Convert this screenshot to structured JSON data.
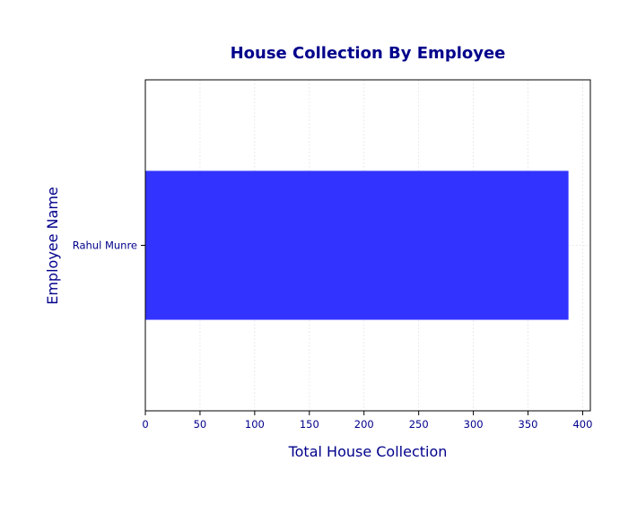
{
  "chart_data": {
    "type": "bar",
    "orientation": "horizontal",
    "title": "House Collection By Employee",
    "xlabel": "Total House Collection",
    "ylabel": "Employee Name",
    "categories": [
      "Rahul Munre"
    ],
    "values": [
      387
    ],
    "xlim": [
      0,
      407
    ],
    "xticks": [
      0,
      50,
      100,
      150,
      200,
      250,
      300,
      350,
      400
    ],
    "grid": true,
    "legend": "none",
    "colors": {
      "bar": "#3333ff",
      "text": "#00008b",
      "title": "#00008b",
      "grid": "#e6e6e6",
      "axes": "#000000"
    }
  }
}
